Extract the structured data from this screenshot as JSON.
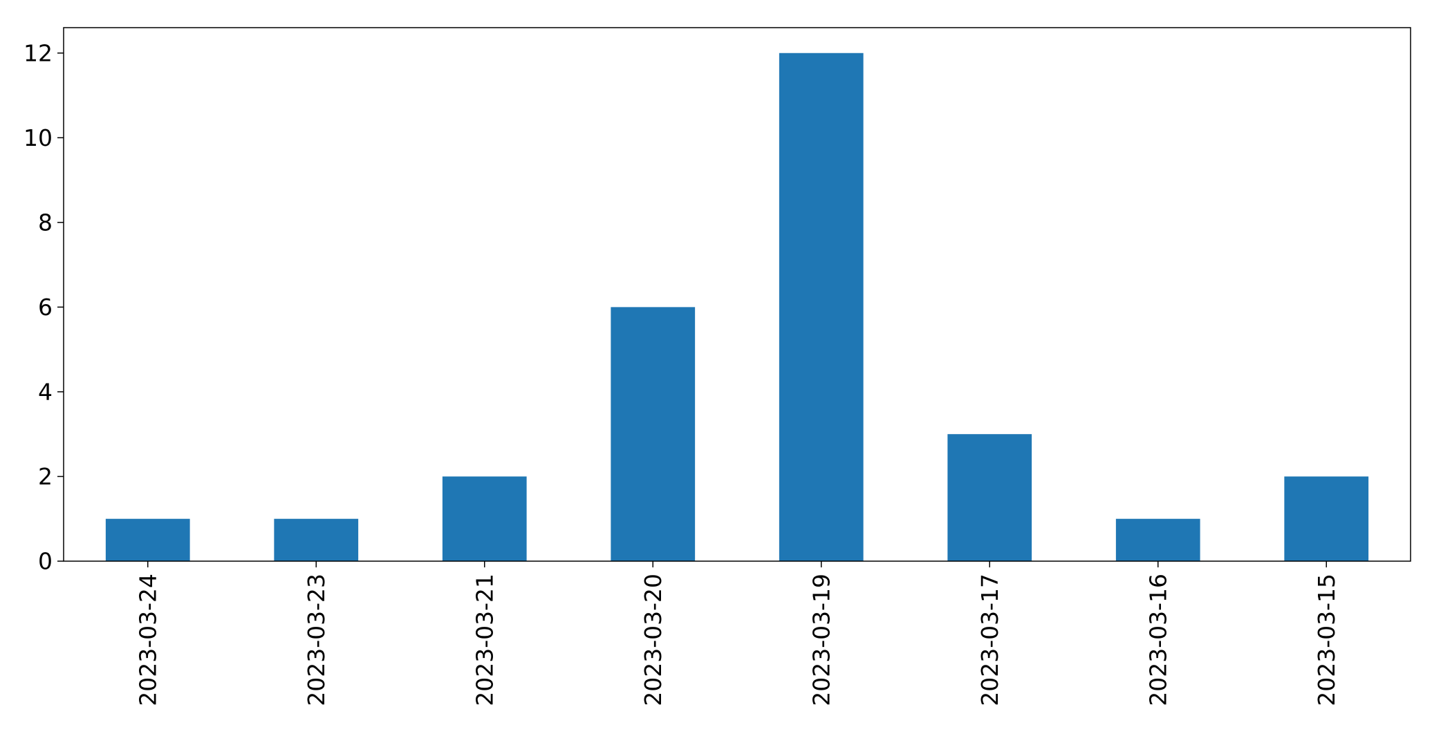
{
  "chart_data": {
    "type": "bar",
    "title": "",
    "xlabel": "",
    "ylabel": "",
    "categories": [
      "2023-03-24",
      "2023-03-23",
      "2023-03-21",
      "2023-03-20",
      "2023-03-19",
      "2023-03-17",
      "2023-03-16",
      "2023-03-15"
    ],
    "values": [
      1,
      1,
      2,
      6,
      12,
      3,
      1,
      2
    ],
    "ylim": [
      0,
      12.6
    ],
    "yticks": [
      "0",
      "2",
      "4",
      "6",
      "8",
      "10",
      "12"
    ],
    "grid": false,
    "legend": false,
    "bar_color": "#1f77b4",
    "x_tick_rotation": "vertical"
  }
}
